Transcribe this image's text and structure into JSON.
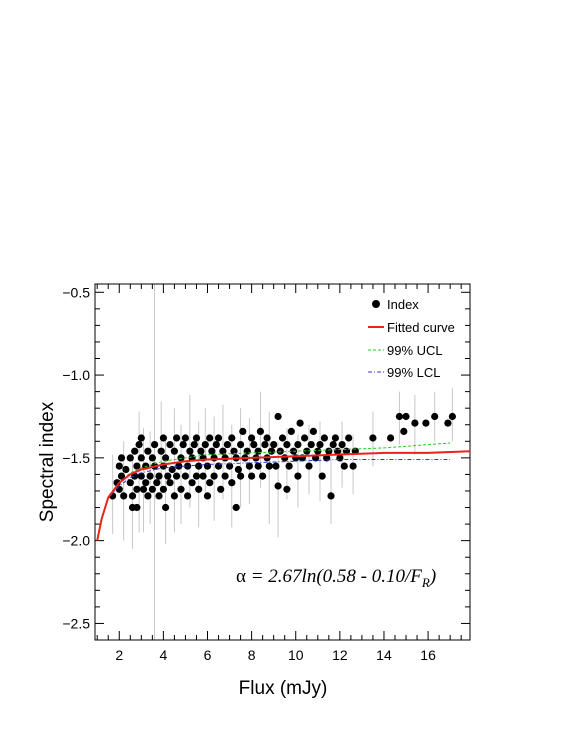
{
  "chart_data": {
    "type": "scatter",
    "xlabel": "Flux (mJy)",
    "ylabel": "Spectral index",
    "xlim": [
      0.9,
      17.9
    ],
    "ylim": [
      -2.6,
      -0.45
    ],
    "x_ticks": [
      2,
      4,
      6,
      8,
      10,
      12,
      14,
      16
    ],
    "x_tick_labels": [
      "2",
      "4",
      "6",
      "8",
      "10",
      "12",
      "14",
      "16"
    ],
    "y_ticks": [
      -0.5,
      -1.0,
      -1.5,
      -2.0,
      -2.5
    ],
    "y_tick_labels": [
      "−0.5",
      "−1.0",
      "−1.5",
      "−2.0",
      "−2.5"
    ],
    "grid": false,
    "legend_position": "top-right",
    "legend": [
      {
        "label": "Index",
        "style": "marker",
        "color": "#000000"
      },
      {
        "label": "Fitted curve",
        "style": "solid",
        "color": "#e8231a"
      },
      {
        "label": "99% UCL",
        "style": "dashed",
        "color": "#22cc22"
      },
      {
        "label": "99% LCL",
        "style": "dashdot",
        "color": "#3333dd"
      }
    ],
    "annotation": {
      "alpha": "α",
      "rest": " = 2.67ln(0.58 - 0.10/F",
      "subscript": "R",
      "tail": ")"
    },
    "fitted_curve": {
      "equation": "y = 2.67*ln(0.58 - 0.10/x)",
      "x": [
        1.0,
        1.2,
        1.5,
        2.0,
        2.5,
        3.0,
        4.0,
        5.0,
        6.0,
        8.0,
        10.0,
        12.0,
        14.0,
        16.0,
        17.9
      ],
      "y": [
        -2.0,
        -1.87,
        -1.74,
        -1.65,
        -1.6,
        -1.57,
        -1.54,
        -1.52,
        -1.51,
        -1.5,
        -1.49,
        -1.48,
        -1.47,
        -1.47,
        -1.46
      ]
    },
    "ucl": {
      "x": [
        1.6,
        2.0,
        2.5,
        3.0,
        4.0,
        5.0,
        6.0,
        8.0,
        10.0,
        12.0,
        14.0,
        16.0,
        17.0
      ],
      "y": [
        -1.72,
        -1.65,
        -1.59,
        -1.56,
        -1.52,
        -1.5,
        -1.48,
        -1.47,
        -1.46,
        -1.45,
        -1.44,
        -1.42,
        -1.41
      ]
    },
    "lcl": {
      "x": [
        1.6,
        2.0,
        2.5,
        3.0,
        4.0,
        5.0,
        6.0,
        8.0,
        10.0,
        12.0,
        14.0,
        16.0,
        17.0
      ],
      "y": [
        -1.73,
        -1.67,
        -1.62,
        -1.59,
        -1.56,
        -1.55,
        -1.54,
        -1.53,
        -1.52,
        -1.51,
        -1.51,
        -1.51,
        -1.51
      ]
    },
    "series": [
      {
        "name": "Index",
        "points": [
          [
            1.7,
            -1.73
          ],
          [
            1.9,
            -1.65
          ],
          [
            2.0,
            -1.69
          ],
          [
            2.0,
            -1.55
          ],
          [
            2.1,
            -1.5
          ],
          [
            2.1,
            -1.61
          ],
          [
            2.2,
            -1.73
          ],
          [
            2.3,
            -1.57
          ],
          [
            2.5,
            -1.65
          ],
          [
            2.5,
            -1.5
          ],
          [
            2.6,
            -1.73
          ],
          [
            2.6,
            -1.8
          ],
          [
            2.7,
            -1.61
          ],
          [
            2.7,
            -1.46
          ],
          [
            2.8,
            -1.55
          ],
          [
            2.8,
            -1.69
          ],
          [
            2.8,
            -1.8
          ],
          [
            2.9,
            -1.42
          ],
          [
            3.0,
            -1.5
          ],
          [
            3.0,
            -1.61
          ],
          [
            3.0,
            -1.38
          ],
          [
            3.1,
            -1.69
          ],
          [
            3.2,
            -1.55
          ],
          [
            3.2,
            -1.65
          ],
          [
            3.3,
            -1.46
          ],
          [
            3.3,
            -1.73
          ],
          [
            3.4,
            -1.61
          ],
          [
            3.5,
            -1.5
          ],
          [
            3.5,
            -1.69
          ],
          [
            3.6,
            -1.42
          ],
          [
            3.6,
            -1.55
          ],
          [
            3.7,
            -1.65
          ],
          [
            3.8,
            -1.61
          ],
          [
            3.8,
            -1.73
          ],
          [
            3.9,
            -1.46
          ],
          [
            4.0,
            -1.38
          ],
          [
            4.0,
            -1.55
          ],
          [
            4.0,
            -1.69
          ],
          [
            4.1,
            -1.8
          ],
          [
            4.1,
            -1.5
          ],
          [
            4.2,
            -1.61
          ],
          [
            4.3,
            -1.42
          ],
          [
            4.3,
            -1.65
          ],
          [
            4.4,
            -1.57
          ],
          [
            4.5,
            -1.73
          ],
          [
            4.5,
            -1.46
          ],
          [
            4.6,
            -1.38
          ],
          [
            4.6,
            -1.61
          ],
          [
            4.7,
            -1.55
          ],
          [
            4.8,
            -1.5
          ],
          [
            4.8,
            -1.69
          ],
          [
            4.9,
            -1.42
          ],
          [
            5.0,
            -1.61
          ],
          [
            5.0,
            -1.38
          ],
          [
            5.1,
            -1.73
          ],
          [
            5.1,
            -1.55
          ],
          [
            5.2,
            -1.46
          ],
          [
            5.3,
            -1.65
          ],
          [
            5.3,
            -1.5
          ],
          [
            5.4,
            -1.42
          ],
          [
            5.5,
            -1.61
          ],
          [
            5.5,
            -1.38
          ],
          [
            5.6,
            -1.55
          ],
          [
            5.6,
            -1.69
          ],
          [
            5.7,
            -1.46
          ],
          [
            5.8,
            -1.5
          ],
          [
            5.8,
            -1.61
          ],
          [
            5.9,
            -1.42
          ],
          [
            6.0,
            -1.55
          ],
          [
            6.0,
            -1.73
          ],
          [
            6.1,
            -1.38
          ],
          [
            6.1,
            -1.65
          ],
          [
            6.2,
            -1.46
          ],
          [
            6.3,
            -1.5
          ],
          [
            6.3,
            -1.61
          ],
          [
            6.4,
            -1.42
          ],
          [
            6.5,
            -1.55
          ],
          [
            6.5,
            -1.38
          ],
          [
            6.6,
            -1.69
          ],
          [
            6.7,
            -1.46
          ],
          [
            6.8,
            -1.5
          ],
          [
            6.8,
            -1.61
          ],
          [
            6.9,
            -1.42
          ],
          [
            7.0,
            -1.55
          ],
          [
            7.1,
            -1.38
          ],
          [
            7.1,
            -1.65
          ],
          [
            7.2,
            -1.46
          ],
          [
            7.3,
            -1.8
          ],
          [
            7.3,
            -1.5
          ],
          [
            7.4,
            -1.57
          ],
          [
            7.5,
            -1.42
          ],
          [
            7.5,
            -1.61
          ],
          [
            7.6,
            -1.34
          ],
          [
            7.7,
            -1.5
          ],
          [
            7.8,
            -1.46
          ],
          [
            7.9,
            -1.55
          ],
          [
            8.0,
            -1.38
          ],
          [
            8.0,
            -1.61
          ],
          [
            8.1,
            -1.42
          ],
          [
            8.2,
            -1.5
          ],
          [
            8.3,
            -1.55
          ],
          [
            8.3,
            -1.46
          ],
          [
            8.4,
            -1.34
          ],
          [
            8.5,
            -1.61
          ],
          [
            8.6,
            -1.42
          ],
          [
            8.7,
            -1.5
          ],
          [
            8.7,
            -1.38
          ],
          [
            8.8,
            -1.55
          ],
          [
            8.9,
            -1.46
          ],
          [
            9.0,
            -1.42
          ],
          [
            9.1,
            -1.55
          ],
          [
            9.2,
            -1.25
          ],
          [
            9.2,
            -1.67
          ],
          [
            9.3,
            -1.46
          ],
          [
            9.4,
            -1.38
          ],
          [
            9.5,
            -1.5
          ],
          [
            9.6,
            -1.69
          ],
          [
            9.6,
            -1.42
          ],
          [
            9.7,
            -1.55
          ],
          [
            9.8,
            -1.34
          ],
          [
            9.9,
            -1.46
          ],
          [
            10.0,
            -1.5
          ],
          [
            10.1,
            -1.42
          ],
          [
            10.1,
            -1.61
          ],
          [
            10.2,
            -1.29
          ],
          [
            10.3,
            -1.5
          ],
          [
            10.4,
            -1.38
          ],
          [
            10.5,
            -1.46
          ],
          [
            10.6,
            -1.55
          ],
          [
            10.7,
            -1.42
          ],
          [
            10.8,
            -1.34
          ],
          [
            10.9,
            -1.5
          ],
          [
            11.0,
            -1.46
          ],
          [
            11.1,
            -1.42
          ],
          [
            11.2,
            -1.61
          ],
          [
            11.3,
            -1.38
          ],
          [
            11.4,
            -1.5
          ],
          [
            11.5,
            -1.46
          ],
          [
            11.6,
            -1.73
          ],
          [
            11.7,
            -1.42
          ],
          [
            11.8,
            -1.38
          ],
          [
            11.9,
            -1.46
          ],
          [
            12.0,
            -1.5
          ],
          [
            12.1,
            -1.42
          ],
          [
            12.2,
            -1.55
          ],
          [
            12.3,
            -1.46
          ],
          [
            12.4,
            -1.38
          ],
          [
            12.6,
            -1.55
          ],
          [
            12.7,
            -1.46
          ],
          [
            13.5,
            -1.38
          ],
          [
            14.3,
            -1.38
          ],
          [
            14.7,
            -1.25
          ],
          [
            14.9,
            -1.34
          ],
          [
            15.0,
            -1.25
          ],
          [
            15.4,
            -1.29
          ],
          [
            15.9,
            -1.29
          ],
          [
            16.3,
            -1.25
          ],
          [
            16.9,
            -1.29
          ],
          [
            17.1,
            -1.25
          ]
        ]
      }
    ],
    "error_bars": [
      [
        1.7,
        -1.96,
        -1.48
      ],
      [
        2.2,
        -2.0,
        -1.4
      ],
      [
        2.6,
        -2.05,
        -1.46
      ],
      [
        2.9,
        -1.95,
        -1.22
      ],
      [
        3.1,
        -1.95,
        -1.32
      ],
      [
        3.4,
        -1.9,
        -1.34
      ],
      [
        3.6,
        -2.6,
        -0.45
      ],
      [
        3.9,
        -1.72,
        -1.16
      ],
      [
        4.1,
        -2.02,
        -1.38
      ],
      [
        4.5,
        -1.95,
        -1.2
      ],
      [
        4.8,
        -1.9,
        -1.3
      ],
      [
        5.2,
        -1.8,
        -1.12
      ],
      [
        5.6,
        -1.92,
        -1.28
      ],
      [
        5.9,
        -1.75,
        -1.2
      ],
      [
        6.3,
        -1.88,
        -1.25
      ],
      [
        6.7,
        -1.75,
        -1.18
      ],
      [
        7.1,
        -1.92,
        -1.3
      ],
      [
        7.5,
        -1.8,
        -1.2
      ],
      [
        7.9,
        -1.78,
        -1.26
      ],
      [
        8.4,
        -1.68,
        -1.1
      ],
      [
        8.8,
        -1.9,
        -1.22
      ],
      [
        9.2,
        -1.98,
        -1.4
      ],
      [
        9.6,
        -1.75,
        -1.32
      ],
      [
        10.1,
        -1.8,
        -1.36
      ],
      [
        10.6,
        -1.72,
        -1.3
      ],
      [
        11.1,
        -1.76,
        -1.28
      ],
      [
        11.6,
        -1.9,
        -1.45
      ],
      [
        12.1,
        -1.68,
        -1.28
      ],
      [
        12.6,
        -1.72,
        -1.36
      ],
      [
        13.5,
        -1.55,
        -1.22
      ],
      [
        14.7,
        -1.42,
        -1.1
      ],
      [
        15.4,
        -1.48,
        -1.12
      ],
      [
        16.3,
        -1.4,
        -1.1
      ],
      [
        17.1,
        -1.4,
        -1.08
      ]
    ]
  }
}
